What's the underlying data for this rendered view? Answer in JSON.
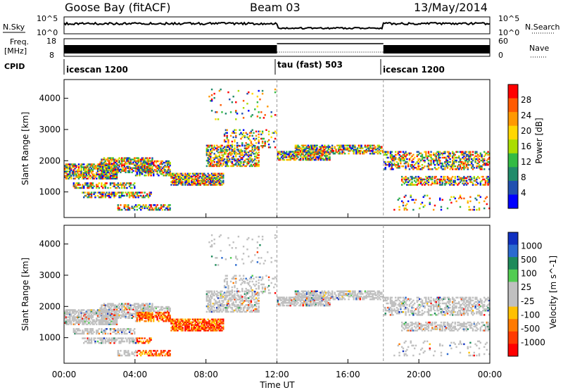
{
  "header": {
    "station": "Goose Bay (fitACF)",
    "beam": "Beam 03",
    "date": "13/May/2014"
  },
  "top_panels": {
    "nsky_label": "N.Sky",
    "nsky_ticks": [
      "10^5",
      "10^0"
    ],
    "nsearch_label": "N.Search",
    "nsearch_ticks": [
      "10^5",
      "10^0"
    ],
    "freq_label": "Freq.",
    "freq_unit": "[MHz]",
    "freq_ticks": [
      "18",
      "8"
    ],
    "nave_label": "Nave",
    "nave_ticks": [
      "60",
      "0"
    ],
    "cpid_label": "CPID",
    "cpid_modes": [
      {
        "name": "icescan 1200",
        "start_h": 0,
        "end_h": 12
      },
      {
        "name": "tau (fast) 503",
        "start_h": 12,
        "end_h": 18
      },
      {
        "name": "icescan 1200",
        "start_h": 18,
        "end_h": 24
      }
    ]
  },
  "chart_data": [
    {
      "type": "heatmap",
      "name": "Power",
      "ylabel": "Slant Range [km]",
      "yticks": [
        1000,
        2000,
        3000,
        4000
      ],
      "ylim": [
        180,
        4600
      ],
      "xlim": [
        0,
        24
      ],
      "colorbar_label": "Power [dB]",
      "colorbar_ticks": [
        "28",
        "24",
        "20",
        "16",
        "12",
        "8",
        "4"
      ],
      "colorbar_colors": [
        "#ff0000",
        "#ff5a00",
        "#ff9900",
        "#ffd700",
        "#aadd00",
        "#33bb44",
        "#208b6a",
        "#2050b0",
        "#0000ff"
      ]
    },
    {
      "type": "heatmap",
      "name": "Velocity",
      "ylabel": "Slant Range [km]",
      "yticks": [
        1000,
        2000,
        3000,
        4000
      ],
      "ylim": [
        180,
        4600
      ],
      "xlim": [
        0,
        24
      ],
      "xlabel": "Time UT",
      "xticks": [
        "00:00",
        "04:00",
        "08:00",
        "12:00",
        "16:00",
        "20:00",
        "00:00"
      ],
      "colorbar_label": "Velocity [m s^-1]",
      "colorbar_ticks": [
        "1000",
        "500",
        "100",
        "25",
        "-25",
        "-100",
        "-500",
        "-1000"
      ],
      "colorbar_colors": [
        "#1030c0",
        "#2a6ad0",
        "#1d8a5a",
        "#52cc52",
        "#c0c0c0",
        "#c0c0c0",
        "#ffc000",
        "#ff7a00",
        "#ff3a00",
        "#ff0000"
      ]
    }
  ]
}
